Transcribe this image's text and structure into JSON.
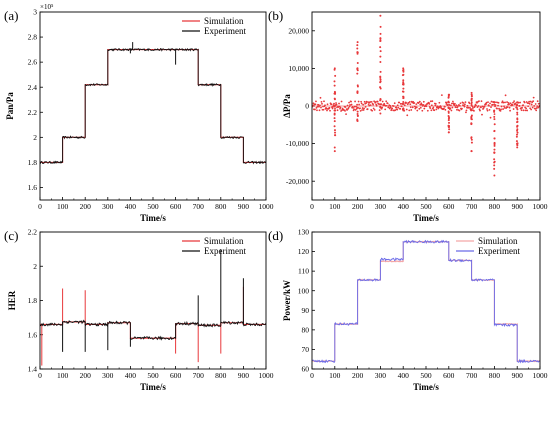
{
  "chart_data": [
    {
      "panel_label": "(a)",
      "type": "line",
      "xlabel": "Time/s",
      "ylabel": "Pan/Pa",
      "axis_multiplier": "×10⁵",
      "xlim": [
        0,
        1000
      ],
      "ylim": [
        1.5,
        3.0
      ],
      "xticks": [
        0,
        100,
        200,
        300,
        400,
        500,
        600,
        700,
        800,
        900,
        1000
      ],
      "yticks": [
        1.6,
        1.8,
        2.0,
        2.2,
        2.4,
        2.6,
        2.8,
        3.0
      ],
      "legend_position": "top-right",
      "series": [
        {
          "name": "Simulation",
          "color": "#e8383b",
          "steps": [
            [
              0,
              1.8
            ],
            [
              100,
              2.0
            ],
            [
              200,
              2.42
            ],
            [
              300,
              2.7
            ],
            [
              700,
              2.42
            ],
            [
              800,
              2.0
            ],
            [
              900,
              1.8
            ],
            [
              1000,
              1.8
            ]
          ]
        },
        {
          "name": "Experiment",
          "color": "#111111",
          "steps": [
            [
              0,
              1.8
            ],
            [
              100,
              2.0
            ],
            [
              200,
              2.42
            ],
            [
              300,
              2.7
            ],
            [
              700,
              2.42
            ],
            [
              800,
              2.0
            ],
            [
              900,
              1.8
            ],
            [
              1000,
              1.8
            ]
          ]
        }
      ]
    },
    {
      "panel_label": "(b)",
      "type": "scatter",
      "xlabel": "Time/s",
      "ylabel": "ΔP/Pa",
      "xlim": [
        0,
        1000
      ],
      "ylim": [
        -25000,
        25000
      ],
      "xticks": [
        0,
        100,
        200,
        300,
        400,
        500,
        600,
        700,
        800,
        900,
        1000
      ],
      "yticks": [
        -20000,
        -10000,
        0,
        10000,
        20000
      ],
      "ytick_labels": [
        "-20,000",
        "-10,000",
        "0",
        "10,000",
        "20,000"
      ],
      "series": [
        {
          "color": "#e8383b",
          "spikes": [
            {
              "x": 100,
              "min": -12000,
              "max": 10000
            },
            {
              "x": 200,
              "min": -4000,
              "max": 17000
            },
            {
              "x": 300,
              "min": -2000,
              "max": 24000
            },
            {
              "x": 400,
              "min": -1000,
              "max": 10000
            },
            {
              "x": 600,
              "min": -7000,
              "max": 3000
            },
            {
              "x": 700,
              "min": -12000,
              "max": 3500
            },
            {
              "x": 800,
              "min": -18500,
              "max": 1000
            },
            {
              "x": 900,
              "min": -11000,
              "max": 1000
            }
          ]
        }
      ]
    },
    {
      "panel_label": "(c)",
      "type": "line",
      "xlabel": "Time/s",
      "ylabel": "HER",
      "xlim": [
        0,
        1000
      ],
      "ylim": [
        1.4,
        2.2
      ],
      "xticks": [
        0,
        100,
        200,
        300,
        400,
        500,
        600,
        700,
        800,
        900,
        1000
      ],
      "yticks": [
        1.4,
        1.6,
        1.8,
        2.0,
        2.2
      ],
      "legend_position": "top-right",
      "series": [
        {
          "name": "Simulation",
          "color": "#e8383b",
          "steps": [
            [
              0,
              1.66
            ],
            [
              100,
              1.675
            ],
            [
              200,
              1.66
            ],
            [
              300,
              1.67
            ],
            [
              400,
              1.58
            ],
            [
              600,
              1.665
            ],
            [
              700,
              1.655
            ],
            [
              800,
              1.67
            ],
            [
              900,
              1.66
            ],
            [
              1000,
              1.66
            ]
          ],
          "spikes": [
            {
              "x": 8,
              "v": 1.42
            },
            {
              "x": 100,
              "v": 1.87
            },
            {
              "x": 200,
              "v": 1.86
            },
            {
              "x": 600,
              "v": 1.49
            },
            {
              "x": 700,
              "v": 1.44
            },
            {
              "x": 800,
              "v": 1.49
            },
            {
              "x": 900,
              "v": 1.88
            }
          ]
        },
        {
          "name": "Experiment",
          "color": "#111111",
          "steps": [
            [
              0,
              1.66
            ],
            [
              100,
              1.675
            ],
            [
              200,
              1.66
            ],
            [
              300,
              1.67
            ],
            [
              400,
              1.58
            ],
            [
              600,
              1.665
            ],
            [
              700,
              1.655
            ],
            [
              800,
              1.67
            ],
            [
              900,
              1.66
            ],
            [
              1000,
              1.66
            ]
          ],
          "spikes": [
            {
              "x": 100,
              "v": 1.5
            },
            {
              "x": 200,
              "v": 1.5
            },
            {
              "x": 300,
              "v": 1.51
            },
            {
              "x": 400,
              "v": 1.53
            },
            {
              "x": 700,
              "v": 1.83
            },
            {
              "x": 800,
              "v": 2.1
            },
            {
              "x": 900,
              "v": 1.93
            }
          ]
        }
      ]
    },
    {
      "panel_label": "(d)",
      "type": "line",
      "xlabel": "Time/s",
      "ylabel": "Power/kW",
      "xlim": [
        0,
        1000
      ],
      "ylim": [
        60,
        130
      ],
      "xticks": [
        0,
        100,
        200,
        300,
        400,
        500,
        600,
        700,
        800,
        900,
        1000
      ],
      "yticks": [
        60,
        70,
        80,
        90,
        100,
        110,
        120,
        130
      ],
      "legend_position": "top-right",
      "series": [
        {
          "name": "Simulation",
          "color": "#f4a6a6",
          "steps": [
            [
              0,
              64
            ],
            [
              100,
              83
            ],
            [
              200,
              105.5
            ],
            [
              300,
              115
            ],
            [
              400,
              125
            ],
            [
              600,
              115.5
            ],
            [
              700,
              105.5
            ],
            [
              800,
              83
            ],
            [
              900,
              64
            ],
            [
              1000,
              64
            ]
          ]
        },
        {
          "name": "Experiment",
          "color": "#6a6ae8",
          "steps": [
            [
              0,
              64
            ],
            [
              100,
              83
            ],
            [
              200,
              105.5
            ],
            [
              300,
              116
            ],
            [
              400,
              125
            ],
            [
              600,
              115.5
            ],
            [
              700,
              105.5
            ],
            [
              800,
              82.5
            ],
            [
              900,
              64
            ],
            [
              1000,
              64
            ]
          ]
        }
      ]
    }
  ]
}
